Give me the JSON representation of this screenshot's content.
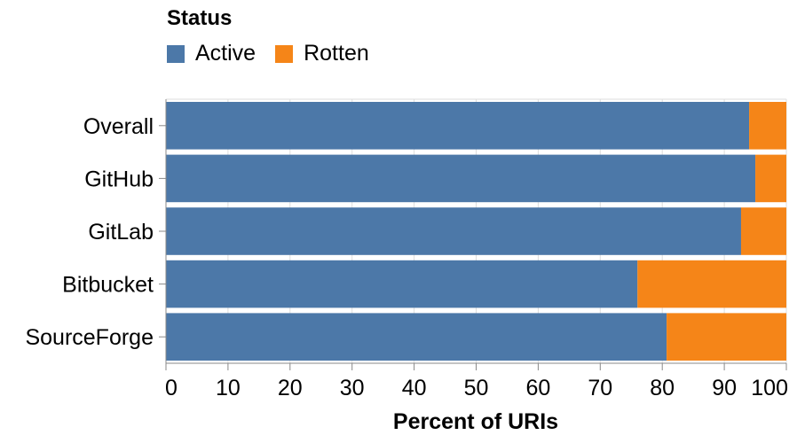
{
  "chart_data": {
    "type": "bar",
    "orientation": "horizontal",
    "stacked": true,
    "title": "",
    "xlabel": "Percent of URIs",
    "ylabel": "",
    "xlim": [
      0,
      100
    ],
    "x_ticks": [
      "0",
      "10",
      "20",
      "30",
      "40",
      "50",
      "60",
      "70",
      "80",
      "90",
      "100"
    ],
    "categories": [
      "Overall",
      "GitHub",
      "GitLab",
      "Bitbucket",
      "SourceForge"
    ],
    "series": [
      {
        "name": "Active",
        "color": "#4c78a8",
        "values": [
          94,
          95,
          92.7,
          76,
          80.7
        ]
      },
      {
        "name": "Rotten",
        "color": "#f58518",
        "values": [
          6,
          5,
          7.3,
          24,
          19.3
        ]
      }
    ],
    "grid": true,
    "legend": {
      "title": "Status",
      "position": "top-left",
      "entries": [
        "Active",
        "Rotten"
      ]
    }
  }
}
